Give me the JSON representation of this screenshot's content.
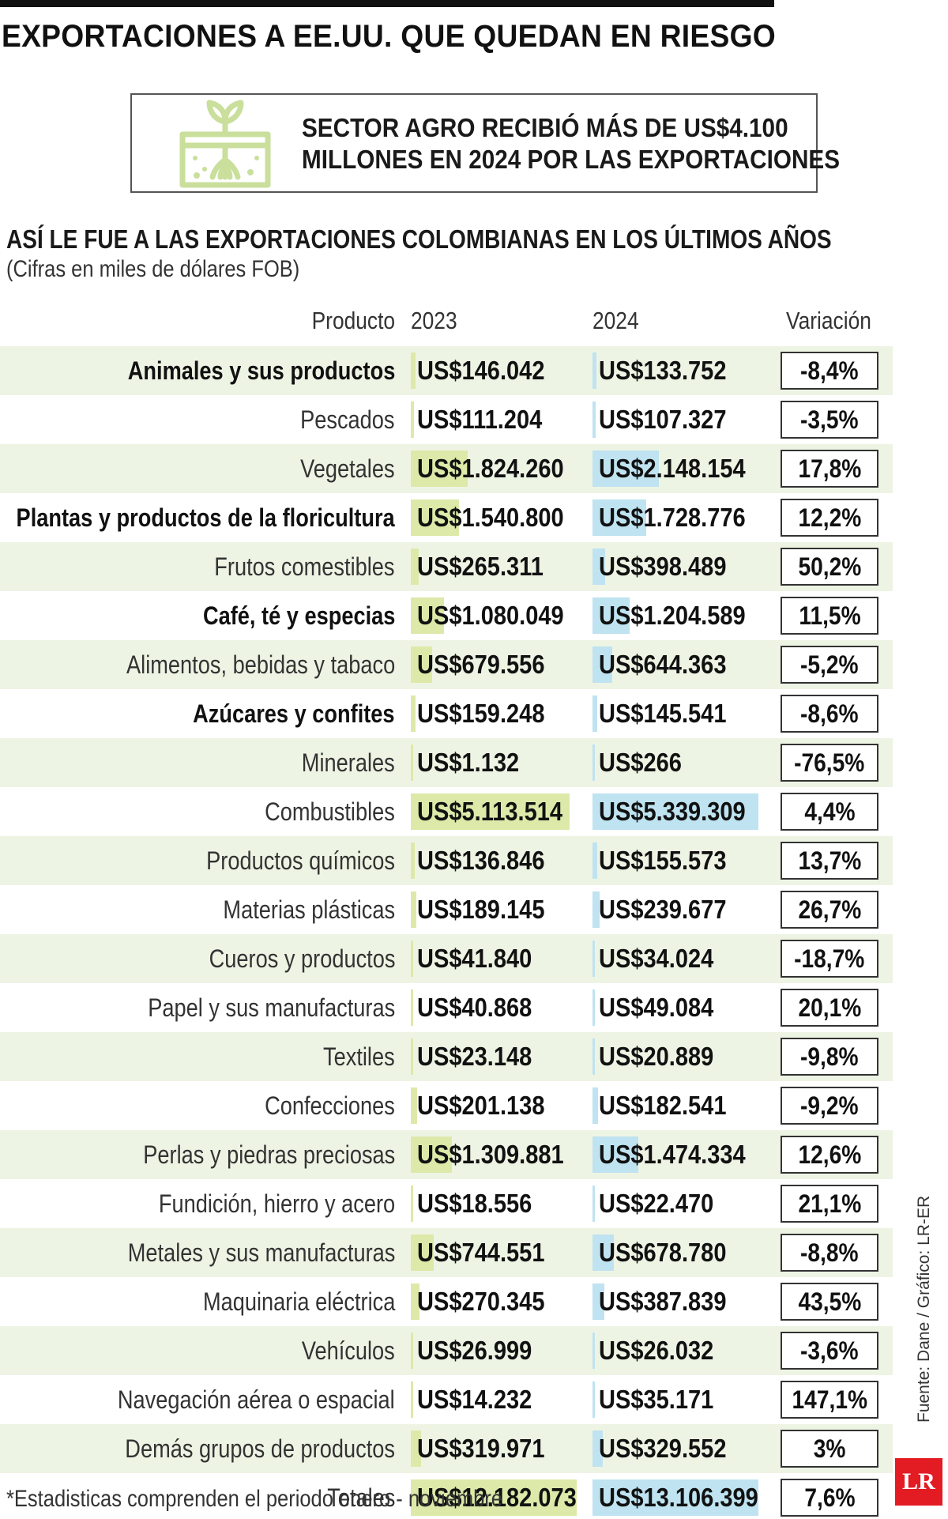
{
  "title": "EXPORTACIONES A EE.UU. QUE QUEDAN EN RIESGO",
  "callout": {
    "icon": "sprout-in-soil-icon",
    "line1": "SECTOR AGRO RECIBIÓ MÁS DE US$4.100",
    "line2": "MILLONES EN 2024 POR LAS EXPORTACIONES"
  },
  "subtitle": "ASÍ LE FUE A LAS EXPORTACIONES COLOMBIANAS EN LOS ÚLTIMOS AÑOS",
  "unit_note": "(Cifras en miles de dólares FOB)",
  "columns": {
    "product": "Producto",
    "year1": "2023",
    "year2": "2024",
    "variation": "Variación"
  },
  "colors": {
    "bar_2023": "#dde9a9",
    "bar_2024": "#bfe3f0",
    "row_shade": "#eef4e4",
    "logo_red": "#e31b23"
  },
  "chart_data": {
    "type": "table",
    "columns": [
      "Producto",
      "2023",
      "2024",
      "Variación"
    ],
    "rows": [
      {
        "product": "Animales y sus productos",
        "bold": true,
        "v2023": 146042,
        "v2024": 133752,
        "label2023": "US$146.042",
        "label2024": "US$133.752",
        "variation": "-8,4%"
      },
      {
        "product": "Pescados",
        "bold": false,
        "v2023": 111204,
        "v2024": 107327,
        "label2023": "US$111.204",
        "label2024": "US$107.327",
        "variation": "-3,5%"
      },
      {
        "product": "Vegetales",
        "bold": false,
        "v2023": 1824260,
        "v2024": 2148154,
        "label2023": "US$1.824.260",
        "label2024": "US$2.148.154",
        "variation": "17,8%"
      },
      {
        "product": "Plantas y productos de la floricultura",
        "bold": true,
        "v2023": 1540800,
        "v2024": 1728776,
        "label2023": "US$1.540.800",
        "label2024": "US$1.728.776",
        "variation": "12,2%"
      },
      {
        "product": "Frutos comestibles",
        "bold": false,
        "v2023": 265311,
        "v2024": 398489,
        "label2023": "US$265.311",
        "label2024": "US$398.489",
        "variation": "50,2%"
      },
      {
        "product": "Café, té y especias",
        "bold": true,
        "v2023": 1080049,
        "v2024": 1204589,
        "label2023": "US$1.080.049",
        "label2024": "US$1.204.589",
        "variation": "11,5%"
      },
      {
        "product": "Alimentos, bebidas y tabaco",
        "bold": false,
        "v2023": 679556,
        "v2024": 644363,
        "label2023": "US$679.556",
        "label2024": "US$644.363",
        "variation": "-5,2%"
      },
      {
        "product": "Azúcares y confites",
        "bold": true,
        "v2023": 159248,
        "v2024": 145541,
        "label2023": "US$159.248",
        "label2024": "US$145.541",
        "variation": "-8,6%"
      },
      {
        "product": "Minerales",
        "bold": false,
        "v2023": 1132,
        "v2024": 266,
        "label2023": "US$1.132",
        "label2024": "US$266",
        "variation": "-76,5%"
      },
      {
        "product": "Combustibles",
        "bold": false,
        "v2023": 5113514,
        "v2024": 5339309,
        "label2023": "US$5.113.514",
        "label2024": "US$5.339.309",
        "variation": "4,4%"
      },
      {
        "product": "Productos químicos",
        "bold": false,
        "v2023": 136846,
        "v2024": 155573,
        "label2023": "US$136.846",
        "label2024": "US$155.573",
        "variation": "13,7%"
      },
      {
        "product": "Materias plásticas",
        "bold": false,
        "v2023": 189145,
        "v2024": 239677,
        "label2023": "US$189.145",
        "label2024": "US$239.677",
        "variation": "26,7%"
      },
      {
        "product": "Cueros y productos",
        "bold": false,
        "v2023": 41840,
        "v2024": 34024,
        "label2023": "US$41.840",
        "label2024": "US$34.024",
        "variation": "-18,7%"
      },
      {
        "product": "Papel y sus manufacturas",
        "bold": false,
        "v2023": 40868,
        "v2024": 49084,
        "label2023": "US$40.868",
        "label2024": "US$49.084",
        "variation": "20,1%"
      },
      {
        "product": "Textiles",
        "bold": false,
        "v2023": 23148,
        "v2024": 20889,
        "label2023": "US$23.148",
        "label2024": "US$20.889",
        "variation": "-9,8%"
      },
      {
        "product": "Confecciones",
        "bold": false,
        "v2023": 201138,
        "v2024": 182541,
        "label2023": "US$201.138",
        "label2024": "US$182.541",
        "variation": "-9,2%"
      },
      {
        "product": "Perlas y piedras preciosas",
        "bold": false,
        "v2023": 1309881,
        "v2024": 1474334,
        "label2023": "US$1.309.881",
        "label2024": "US$1.474.334",
        "variation": "12,6%"
      },
      {
        "product": "Fundición, hierro y acero",
        "bold": false,
        "v2023": 18556,
        "v2024": 22470,
        "label2023": "US$18.556",
        "label2024": "US$22.470",
        "variation": "21,1%"
      },
      {
        "product": "Metales y sus manufacturas",
        "bold": false,
        "v2023": 744551,
        "v2024": 678780,
        "label2023": "US$744.551",
        "label2024": "US$678.780",
        "variation": "-8,8%"
      },
      {
        "product": "Maquinaria eléctrica",
        "bold": false,
        "v2023": 270345,
        "v2024": 387839,
        "label2023": "US$270.345",
        "label2024": "US$387.839",
        "variation": "43,5%"
      },
      {
        "product": "Vehículos",
        "bold": false,
        "v2023": 26999,
        "v2024": 26032,
        "label2023": "US$26.999",
        "label2024": "US$26.032",
        "variation": "-3,6%"
      },
      {
        "product": "Navegación aérea o espacial",
        "bold": false,
        "v2023": 14232,
        "v2024": 35171,
        "label2023": "US$14.232",
        "label2024": "US$35.171",
        "variation": "147,1%"
      },
      {
        "product": "Demás grupos de productos",
        "bold": false,
        "v2023": 319971,
        "v2024": 329552,
        "label2023": "US$319.971",
        "label2024": "US$329.552",
        "variation": "3%"
      },
      {
        "product": "Totales",
        "bold": false,
        "v2023": 12182073,
        "v2024": 13106399,
        "label2023": "US$12.182.073",
        "label2024": "US$13.106.399",
        "variation": "7,6%"
      }
    ]
  },
  "footnote": "*Estadisticas comprenden el periodo enero - noviembre",
  "source": "Fuente: Dane / Gráfico: LR-ER",
  "logo_text": "LR"
}
